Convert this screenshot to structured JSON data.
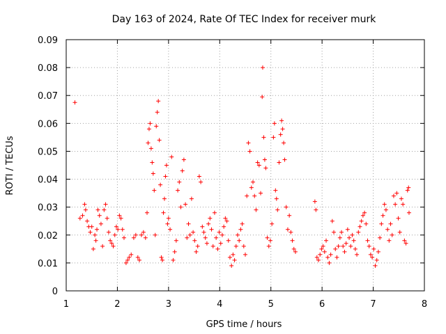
{
  "chart_data": {
    "type": "scatter",
    "title": "Day 163 of 2024, Rate Of TEC Index for receiver murk",
    "xlabel": "GPS time / hours",
    "ylabel": "ROTI / TECUs",
    "xlim": [
      1,
      8
    ],
    "ylim": [
      0,
      0.09
    ],
    "x_ticks": [
      1,
      2,
      3,
      4,
      5,
      6,
      7,
      8
    ],
    "y_ticks": [
      0,
      0.01,
      0.02,
      0.03,
      0.04,
      0.05,
      0.06,
      0.07,
      0.08,
      0.09
    ],
    "x_tick_labels": [
      "1",
      "2",
      "3",
      "4",
      "5",
      "6",
      "7",
      "8"
    ],
    "y_tick_labels": [
      "0",
      "0.01",
      "0.02",
      "0.03",
      "0.04",
      "0.05",
      "0.06",
      "0.07",
      "0.08",
      "0.09"
    ],
    "grid": true,
    "marker": "+",
    "series": [
      {
        "name": "ROTI",
        "color": "#ff0000",
        "points": [
          [
            1.17,
            0.0675
          ],
          [
            1.27,
            0.026
          ],
          [
            1.32,
            0.027
          ],
          [
            1.36,
            0.031
          ],
          [
            1.38,
            0.029
          ],
          [
            1.41,
            0.025
          ],
          [
            1.44,
            0.023
          ],
          [
            1.47,
            0.021
          ],
          [
            1.5,
            0.023
          ],
          [
            1.53,
            0.015
          ],
          [
            1.56,
            0.02
          ],
          [
            1.58,
            0.018
          ],
          [
            1.6,
            0.022
          ],
          [
            1.62,
            0.029
          ],
          [
            1.65,
            0.027
          ],
          [
            1.68,
            0.024
          ],
          [
            1.71,
            0.016
          ],
          [
            1.74,
            0.029
          ],
          [
            1.77,
            0.031
          ],
          [
            1.8,
            0.026
          ],
          [
            1.83,
            0.021
          ],
          [
            1.86,
            0.018
          ],
          [
            1.89,
            0.017
          ],
          [
            1.92,
            0.016
          ],
          [
            1.95,
            0.02
          ],
          [
            1.98,
            0.023
          ],
          [
            2.01,
            0.022
          ],
          [
            2.04,
            0.027
          ],
          [
            2.07,
            0.026
          ],
          [
            2.1,
            0.022
          ],
          [
            2.13,
            0.019
          ],
          [
            2.17,
            0.01
          ],
          [
            2.2,
            0.011
          ],
          [
            2.23,
            0.012
          ],
          [
            2.27,
            0.013
          ],
          [
            2.32,
            0.019
          ],
          [
            2.36,
            0.02
          ],
          [
            2.4,
            0.012
          ],
          [
            2.43,
            0.011
          ],
          [
            2.47,
            0.02
          ],
          [
            2.51,
            0.021
          ],
          [
            2.55,
            0.019
          ],
          [
            2.58,
            0.028
          ],
          [
            2.6,
            0.053
          ],
          [
            2.62,
            0.058
          ],
          [
            2.64,
            0.06
          ],
          [
            2.66,
            0.051
          ],
          [
            2.68,
            0.046
          ],
          [
            2.7,
            0.042
          ],
          [
            2.72,
            0.036
          ],
          [
            2.74,
            0.02
          ],
          [
            2.76,
            0.059
          ],
          [
            2.78,
            0.064
          ],
          [
            2.8,
            0.068
          ],
          [
            2.82,
            0.054
          ],
          [
            2.84,
            0.038
          ],
          [
            2.86,
            0.012
          ],
          [
            2.88,
            0.011
          ],
          [
            2.9,
            0.028
          ],
          [
            2.92,
            0.033
          ],
          [
            2.94,
            0.041
          ],
          [
            2.96,
            0.045
          ],
          [
            2.98,
            0.024
          ],
          [
            3.0,
            0.026
          ],
          [
            3.03,
            0.022
          ],
          [
            3.06,
            0.048
          ],
          [
            3.09,
            0.011
          ],
          [
            3.12,
            0.014
          ],
          [
            3.15,
            0.018
          ],
          [
            3.18,
            0.036
          ],
          [
            3.21,
            0.039
          ],
          [
            3.24,
            0.03
          ],
          [
            3.27,
            0.043
          ],
          [
            3.3,
            0.047
          ],
          [
            3.33,
            0.031
          ],
          [
            3.36,
            0.019
          ],
          [
            3.39,
            0.024
          ],
          [
            3.42,
            0.02
          ],
          [
            3.45,
            0.033
          ],
          [
            3.48,
            0.021
          ],
          [
            3.51,
            0.018
          ],
          [
            3.54,
            0.014
          ],
          [
            3.57,
            0.016
          ],
          [
            3.6,
            0.041
          ],
          [
            3.63,
            0.039
          ],
          [
            3.66,
            0.023
          ],
          [
            3.69,
            0.021
          ],
          [
            3.72,
            0.019
          ],
          [
            3.75,
            0.017
          ],
          [
            3.78,
            0.024
          ],
          [
            3.81,
            0.026
          ],
          [
            3.84,
            0.022
          ],
          [
            3.87,
            0.016
          ],
          [
            3.9,
            0.028
          ],
          [
            3.93,
            0.019
          ],
          [
            3.96,
            0.015
          ],
          [
            3.99,
            0.021
          ],
          [
            4.02,
            0.017
          ],
          [
            4.05,
            0.02
          ],
          [
            4.08,
            0.023
          ],
          [
            4.11,
            0.026
          ],
          [
            4.14,
            0.025
          ],
          [
            4.17,
            0.018
          ],
          [
            4.2,
            0.012
          ],
          [
            4.23,
            0.009
          ],
          [
            4.26,
            0.013
          ],
          [
            4.29,
            0.011
          ],
          [
            4.32,
            0.016
          ],
          [
            4.35,
            0.02
          ],
          [
            4.38,
            0.018
          ],
          [
            4.41,
            0.022
          ],
          [
            4.44,
            0.024
          ],
          [
            4.47,
            0.016
          ],
          [
            4.5,
            0.013
          ],
          [
            4.53,
            0.034
          ],
          [
            4.56,
            0.053
          ],
          [
            4.59,
            0.05
          ],
          [
            4.62,
            0.037
          ],
          [
            4.65,
            0.039
          ],
          [
            4.68,
            0.034
          ],
          [
            4.71,
            0.029
          ],
          [
            4.74,
            0.046
          ],
          [
            4.77,
            0.045
          ],
          [
            4.8,
            0.035
          ],
          [
            4.83,
            0.0695
          ],
          [
            4.84,
            0.08
          ],
          [
            4.86,
            0.055
          ],
          [
            4.88,
            0.047
          ],
          [
            4.9,
            0.044
          ],
          [
            4.93,
            0.019
          ],
          [
            4.96,
            0.016
          ],
          [
            4.99,
            0.018
          ],
          [
            5.02,
            0.024
          ],
          [
            5.05,
            0.055
          ],
          [
            5.07,
            0.06
          ],
          [
            5.09,
            0.036
          ],
          [
            5.11,
            0.033
          ],
          [
            5.13,
            0.029
          ],
          [
            5.16,
            0.046
          ],
          [
            5.19,
            0.056
          ],
          [
            5.21,
            0.061
          ],
          [
            5.23,
            0.058
          ],
          [
            5.25,
            0.053
          ],
          [
            5.27,
            0.047
          ],
          [
            5.3,
            0.03
          ],
          [
            5.33,
            0.022
          ],
          [
            5.36,
            0.027
          ],
          [
            5.39,
            0.021
          ],
          [
            5.42,
            0.018
          ],
          [
            5.45,
            0.015
          ],
          [
            5.48,
            0.014
          ],
          [
            5.86,
            0.032
          ],
          [
            5.88,
            0.029
          ],
          [
            5.9,
            0.012
          ],
          [
            5.93,
            0.011
          ],
          [
            5.96,
            0.013
          ],
          [
            5.99,
            0.015
          ],
          [
            6.02,
            0.016
          ],
          [
            6.05,
            0.014
          ],
          [
            6.08,
            0.018
          ],
          [
            6.11,
            0.012
          ],
          [
            6.14,
            0.01
          ],
          [
            6.17,
            0.013
          ],
          [
            6.2,
            0.025
          ],
          [
            6.23,
            0.021
          ],
          [
            6.26,
            0.015
          ],
          [
            6.29,
            0.012
          ],
          [
            6.32,
            0.016
          ],
          [
            6.35,
            0.019
          ],
          [
            6.38,
            0.021
          ],
          [
            6.41,
            0.016
          ],
          [
            6.44,
            0.014
          ],
          [
            6.47,
            0.017
          ],
          [
            6.5,
            0.022
          ],
          [
            6.53,
            0.019
          ],
          [
            6.56,
            0.016
          ],
          [
            6.59,
            0.02
          ],
          [
            6.62,
            0.018
          ],
          [
            6.65,
            0.015
          ],
          [
            6.68,
            0.013
          ],
          [
            6.71,
            0.021
          ],
          [
            6.74,
            0.023
          ],
          [
            6.77,
            0.025
          ],
          [
            6.8,
            0.027
          ],
          [
            6.83,
            0.028
          ],
          [
            6.86,
            0.024
          ],
          [
            6.89,
            0.018
          ],
          [
            6.92,
            0.016
          ],
          [
            6.95,
            0.013
          ],
          [
            6.98,
            0.012
          ],
          [
            7.01,
            0.015
          ],
          [
            7.04,
            0.009
          ],
          [
            7.07,
            0.011
          ],
          [
            7.1,
            0.014
          ],
          [
            7.13,
            0.019
          ],
          [
            7.16,
            0.024
          ],
          [
            7.19,
            0.027
          ],
          [
            7.22,
            0.031
          ],
          [
            7.25,
            0.029
          ],
          [
            7.28,
            0.022
          ],
          [
            7.31,
            0.018
          ],
          [
            7.34,
            0.024
          ],
          [
            7.37,
            0.02
          ],
          [
            7.4,
            0.034
          ],
          [
            7.43,
            0.031
          ],
          [
            7.46,
            0.035
          ],
          [
            7.49,
            0.026
          ],
          [
            7.52,
            0.021
          ],
          [
            7.55,
            0.033
          ],
          [
            7.58,
            0.031
          ],
          [
            7.61,
            0.018
          ],
          [
            7.64,
            0.017
          ],
          [
            7.67,
            0.036
          ],
          [
            7.69,
            0.037
          ],
          [
            7.7,
            0.028
          ]
        ]
      }
    ]
  }
}
